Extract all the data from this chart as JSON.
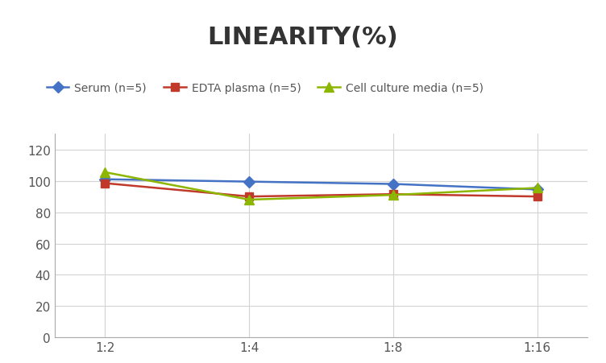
{
  "title": "LINEARITY(%)",
  "title_fontsize": 22,
  "title_fontweight": "bold",
  "title_color": "#333333",
  "x_labels": [
    "1:2",
    "1:4",
    "1:8",
    "1:16"
  ],
  "x_values": [
    0,
    1,
    2,
    3
  ],
  "series": [
    {
      "label": "Serum (n=5)",
      "values": [
        101.0,
        99.5,
        98.0,
        94.5
      ],
      "color": "#4472C4",
      "marker": "D",
      "markersize": 7,
      "linewidth": 1.8
    },
    {
      "label": "EDTA plasma (n=5)",
      "values": [
        98.5,
        90.0,
        91.5,
        90.0
      ],
      "color": "#C0392B",
      "marker": "s",
      "markersize": 7,
      "linewidth": 1.8
    },
    {
      "label": "Cell culture media (n=5)",
      "values": [
        105.5,
        88.0,
        91.0,
        95.5
      ],
      "color": "#8DB600",
      "marker": "^",
      "markersize": 8,
      "linewidth": 1.8
    }
  ],
  "ylim": [
    0,
    130
  ],
  "yticks": [
    0,
    20,
    40,
    60,
    80,
    100,
    120
  ],
  "grid_color": "#D3D3D3",
  "background_color": "#FFFFFF",
  "legend_fontsize": 10,
  "tick_fontsize": 11,
  "tick_color": "#555555",
  "spine_color": "#AAAAAA"
}
